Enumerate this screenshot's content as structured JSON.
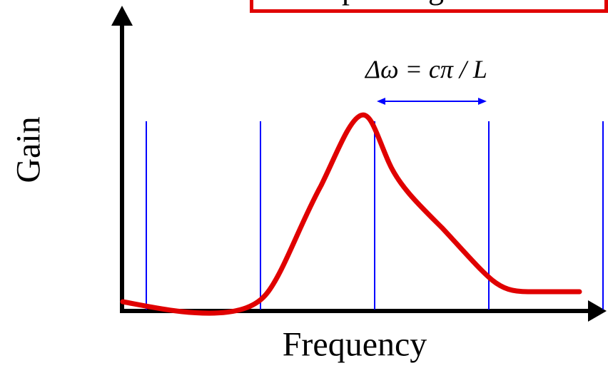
{
  "title": {
    "partial_text": "…p… …g…",
    "frame_color": "#e00000"
  },
  "axes": {
    "ylabel": "Gain",
    "xlabel": "Frequency",
    "color": "#000000"
  },
  "annotation": {
    "equation": "Δω = cπ / L",
    "arrow_color": "#0000ff"
  },
  "modes": {
    "count": 5,
    "color": "#0000ff"
  },
  "gain_curve": {
    "color": "#e00000"
  }
}
